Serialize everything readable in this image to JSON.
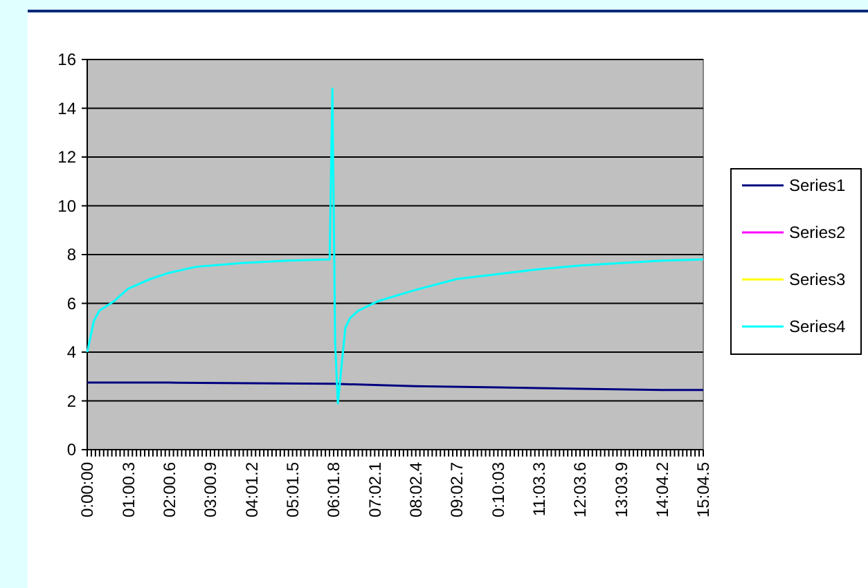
{
  "chart_data": {
    "type": "line",
    "xlim": [
      0,
      904.5
    ],
    "ylim": [
      0,
      16
    ],
    "yticks": [
      0,
      2,
      4,
      6,
      8,
      10,
      12,
      14,
      16
    ],
    "grid": "y",
    "legend": "right",
    "xticks": [
      {
        "value": 0,
        "label": "0:00:00"
      },
      {
        "value": 6.03,
        "label": null
      },
      {
        "value": 12.06,
        "label": null
      },
      {
        "value": 18.09,
        "label": null
      },
      {
        "value": 24.12,
        "label": null
      },
      {
        "value": 30.15,
        "label": null
      },
      {
        "value": 36.18,
        "label": null
      },
      {
        "value": 42.21,
        "label": null
      },
      {
        "value": 48.24,
        "label": null
      },
      {
        "value": 54.27,
        "label": null
      },
      {
        "value": 60.3,
        "label": "01:00.3"
      },
      {
        "value": 66.33,
        "label": null
      },
      {
        "value": 72.36,
        "label": null
      },
      {
        "value": 78.39,
        "label": null
      },
      {
        "value": 84.42,
        "label": null
      },
      {
        "value": 90.45,
        "label": null
      },
      {
        "value": 96.48,
        "label": null
      },
      {
        "value": 102.51,
        "label": null
      },
      {
        "value": 108.54,
        "label": null
      },
      {
        "value": 114.57,
        "label": null
      },
      {
        "value": 120.6,
        "label": "02:00.6"
      },
      {
        "value": 126.63,
        "label": null
      },
      {
        "value": 132.66,
        "label": null
      },
      {
        "value": 138.69,
        "label": null
      },
      {
        "value": 144.72,
        "label": null
      },
      {
        "value": 150.75,
        "label": null
      },
      {
        "value": 156.78,
        "label": null
      },
      {
        "value": 162.81,
        "label": null
      },
      {
        "value": 168.84,
        "label": null
      },
      {
        "value": 174.87,
        "label": null
      },
      {
        "value": 180.9,
        "label": "03:00.9"
      },
      {
        "value": 186.93,
        "label": null
      },
      {
        "value": 192.96,
        "label": null
      },
      {
        "value": 198.99,
        "label": null
      },
      {
        "value": 205.02,
        "label": null
      },
      {
        "value": 211.05,
        "label": null
      },
      {
        "value": 217.08,
        "label": null
      },
      {
        "value": 223.11,
        "label": null
      },
      {
        "value": 229.14,
        "label": null
      },
      {
        "value": 235.17,
        "label": null
      },
      {
        "value": 241.2,
        "label": "04:01.2"
      },
      {
        "value": 247.23,
        "label": null
      },
      {
        "value": 253.26,
        "label": null
      },
      {
        "value": 259.29,
        "label": null
      },
      {
        "value": 265.32,
        "label": null
      },
      {
        "value": 271.35,
        "label": null
      },
      {
        "value": 277.38,
        "label": null
      },
      {
        "value": 283.41,
        "label": null
      },
      {
        "value": 289.44,
        "label": null
      },
      {
        "value": 295.47,
        "label": null
      },
      {
        "value": 301.5,
        "label": "05:01.5"
      },
      {
        "value": 307.53,
        "label": null
      },
      {
        "value": 313.56,
        "label": null
      },
      {
        "value": 319.59,
        "label": null
      },
      {
        "value": 325.62,
        "label": null
      },
      {
        "value": 331.65,
        "label": null
      },
      {
        "value": 337.68,
        "label": null
      },
      {
        "value": 343.71,
        "label": null
      },
      {
        "value": 349.74,
        "label": null
      },
      {
        "value": 355.77,
        "label": null
      },
      {
        "value": 361.8,
        "label": "06:01.8"
      },
      {
        "value": 367.83,
        "label": null
      },
      {
        "value": 373.86,
        "label": null
      },
      {
        "value": 379.89,
        "label": null
      },
      {
        "value": 385.92,
        "label": null
      },
      {
        "value": 391.95,
        "label": null
      },
      {
        "value": 397.98,
        "label": null
      },
      {
        "value": 404.01,
        "label": null
      },
      {
        "value": 410.04,
        "label": null
      },
      {
        "value": 416.07,
        "label": null
      },
      {
        "value": 422.1,
        "label": "07:02.1"
      },
      {
        "value": 428.13,
        "label": null
      },
      {
        "value": 434.16,
        "label": null
      },
      {
        "value": 440.19,
        "label": null
      },
      {
        "value": 446.22,
        "label": null
      },
      {
        "value": 452.25,
        "label": null
      },
      {
        "value": 458.28,
        "label": null
      },
      {
        "value": 464.31,
        "label": null
      },
      {
        "value": 470.34,
        "label": null
      },
      {
        "value": 476.37,
        "label": null
      },
      {
        "value": 482.4,
        "label": "08:02.4"
      },
      {
        "value": 488.43,
        "label": null
      },
      {
        "value": 494.46,
        "label": null
      },
      {
        "value": 500.49,
        "label": null
      },
      {
        "value": 506.52,
        "label": null
      },
      {
        "value": 512.55,
        "label": null
      },
      {
        "value": 518.58,
        "label": null
      },
      {
        "value": 524.61,
        "label": null
      },
      {
        "value": 530.64,
        "label": null
      },
      {
        "value": 536.67,
        "label": null
      },
      {
        "value": 542.7,
        "label": "09:02.7"
      },
      {
        "value": 548.73,
        "label": null
      },
      {
        "value": 554.76,
        "label": null
      },
      {
        "value": 560.79,
        "label": null
      },
      {
        "value": 566.82,
        "label": null
      },
      {
        "value": 572.85,
        "label": null
      },
      {
        "value": 578.88,
        "label": null
      },
      {
        "value": 584.91,
        "label": null
      },
      {
        "value": 590.94,
        "label": null
      },
      {
        "value": 596.97,
        "label": null
      },
      {
        "value": 603,
        "label": "0:10:03"
      },
      {
        "value": 609.03,
        "label": null
      },
      {
        "value": 615.06,
        "label": null
      },
      {
        "value": 621.09,
        "label": null
      },
      {
        "value": 627.12,
        "label": null
      },
      {
        "value": 633.15,
        "label": null
      },
      {
        "value": 639.18,
        "label": null
      },
      {
        "value": 645.21,
        "label": null
      },
      {
        "value": 651.24,
        "label": null
      },
      {
        "value": 657.27,
        "label": null
      },
      {
        "value": 663.3,
        "label": "11:03.3"
      },
      {
        "value": 669.33,
        "label": null
      },
      {
        "value": 675.36,
        "label": null
      },
      {
        "value": 681.39,
        "label": null
      },
      {
        "value": 687.42,
        "label": null
      },
      {
        "value": 693.45,
        "label": null
      },
      {
        "value": 699.48,
        "label": null
      },
      {
        "value": 705.51,
        "label": null
      },
      {
        "value": 711.54,
        "label": null
      },
      {
        "value": 717.57,
        "label": null
      },
      {
        "value": 723.6,
        "label": "12:03.6"
      },
      {
        "value": 729.63,
        "label": null
      },
      {
        "value": 735.66,
        "label": null
      },
      {
        "value": 741.69,
        "label": null
      },
      {
        "value": 747.72,
        "label": null
      },
      {
        "value": 753.75,
        "label": null
      },
      {
        "value": 759.78,
        "label": null
      },
      {
        "value": 765.81,
        "label": null
      },
      {
        "value": 771.84,
        "label": null
      },
      {
        "value": 777.87,
        "label": null
      },
      {
        "value": 783.9,
        "label": "13:03.9"
      },
      {
        "value": 789.93,
        "label": null
      },
      {
        "value": 795.96,
        "label": null
      },
      {
        "value": 801.99,
        "label": null
      },
      {
        "value": 808.02,
        "label": null
      },
      {
        "value": 814.05,
        "label": null
      },
      {
        "value": 820.08,
        "label": null
      },
      {
        "value": 826.11,
        "label": null
      },
      {
        "value": 832.14,
        "label": null
      },
      {
        "value": 838.17,
        "label": null
      },
      {
        "value": 844.2,
        "label": "14:04.2"
      },
      {
        "value": 850.23,
        "label": null
      },
      {
        "value": 856.26,
        "label": null
      },
      {
        "value": 862.29,
        "label": null
      },
      {
        "value": 868.32,
        "label": null
      },
      {
        "value": 874.35,
        "label": null
      },
      {
        "value": 880.38,
        "label": null
      },
      {
        "value": 886.41,
        "label": null
      },
      {
        "value": 892.44,
        "label": null
      },
      {
        "value": 898.47,
        "label": null
      },
      {
        "value": 904.5,
        "label": "15:04.5"
      }
    ],
    "series": [
      {
        "name": "Series1",
        "color": "#000080",
        "x": [
          0,
          120,
          240,
          362,
          482,
          603,
          724,
          844,
          904.5
        ],
        "values": [
          2.75,
          2.75,
          2.72,
          2.7,
          2.6,
          2.55,
          2.5,
          2.45,
          2.45
        ]
      },
      {
        "name": "Series2",
        "color": "#ff00ff"
      },
      {
        "name": "Series3",
        "color": "#ffff00"
      },
      {
        "name": "Series4",
        "color": "#00ffff",
        "x": [
          0,
          10,
          18,
          40,
          60,
          93,
          120,
          160,
          227,
          294,
          356,
          360,
          364,
          368,
          379,
          386,
          398,
          428,
          482,
          543,
          603,
          663,
          724,
          784,
          844,
          904.5
        ],
        "values": [
          4.0,
          5.3,
          5.7,
          6.1,
          6.6,
          7.0,
          7.25,
          7.5,
          7.65,
          7.75,
          7.8,
          14.8,
          4.4,
          1.9,
          5.0,
          5.4,
          5.7,
          6.1,
          6.55,
          7.0,
          7.2,
          7.4,
          7.55,
          7.65,
          7.75,
          7.8
        ]
      }
    ]
  }
}
